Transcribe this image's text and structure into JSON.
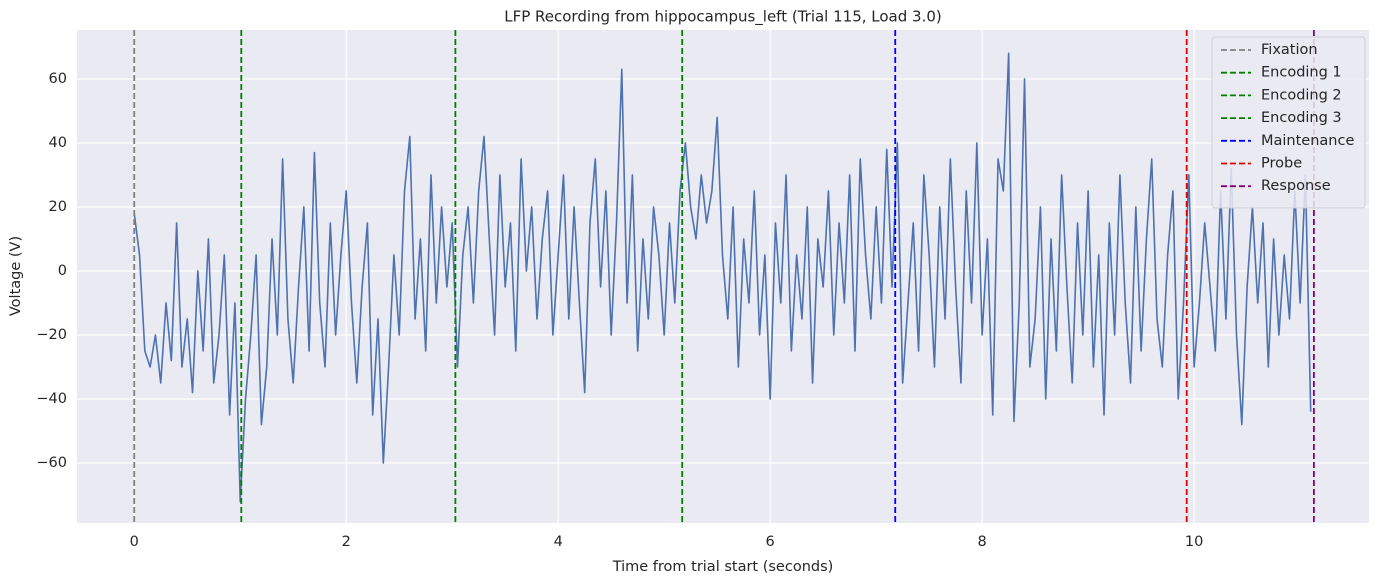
{
  "chart_data": {
    "type": "line",
    "title": "LFP Recording from hippocampus_left (Trial 115, Load 3.0)",
    "xlabel": "Time from trial start (seconds)",
    "ylabel": "Voltage (V)",
    "xlim": [
      -0.54,
      11.65
    ],
    "ylim": [
      -78.75,
      75.3
    ],
    "xticks": [
      0,
      2,
      4,
      6,
      8,
      10
    ],
    "yticks": [
      {
        "value": -60,
        "label": "−60"
      },
      {
        "value": -40,
        "label": "−40"
      },
      {
        "value": -20,
        "label": "−20"
      },
      0,
      20,
      40,
      60
    ],
    "grid": true,
    "legend": "upper right",
    "color": "#4c72b0",
    "x": [
      0,
      0.05,
      0.1,
      0.15,
      0.2,
      0.25,
      0.3,
      0.35,
      0.4,
      0.45,
      0.5,
      0.55,
      0.6,
      0.65,
      0.7,
      0.75,
      0.8,
      0.85,
      0.9,
      0.95,
      1,
      1.05,
      1.1,
      1.15,
      1.2,
      1.25,
      1.3,
      1.35,
      1.4,
      1.45,
      1.5,
      1.55,
      1.6,
      1.65,
      1.7,
      1.75,
      1.8,
      1.85,
      1.9,
      1.95,
      2,
      2.05,
      2.1,
      2.15,
      2.2,
      2.25,
      2.3,
      2.35,
      2.4,
      2.45,
      2.5,
      2.55,
      2.6,
      2.65,
      2.7,
      2.75,
      2.8,
      2.85,
      2.9,
      2.95,
      3,
      3.05,
      3.1,
      3.15,
      3.2,
      3.25,
      3.3,
      3.35,
      3.4,
      3.45,
      3.5,
      3.55,
      3.6,
      3.65,
      3.7,
      3.75,
      3.8,
      3.85,
      3.9,
      3.95,
      4,
      4.05,
      4.1,
      4.15,
      4.2,
      4.25,
      4.3,
      4.35,
      4.4,
      4.45,
      4.5,
      4.55,
      4.6,
      4.65,
      4.7,
      4.75,
      4.8,
      4.85,
      4.9,
      4.95,
      5,
      5.05,
      5.1,
      5.15,
      5.2,
      5.25,
      5.3,
      5.35,
      5.4,
      5.45,
      5.5,
      5.55,
      5.6,
      5.65,
      5.7,
      5.75,
      5.8,
      5.85,
      5.9,
      5.95,
      6,
      6.05,
      6.1,
      6.15,
      6.2,
      6.25,
      6.3,
      6.35,
      6.4,
      6.45,
      6.5,
      6.55,
      6.6,
      6.65,
      6.7,
      6.75,
      6.8,
      6.85,
      6.9,
      6.95,
      7,
      7.05,
      7.1,
      7.15,
      7.2,
      7.25,
      7.3,
      7.35,
      7.4,
      7.45,
      7.5,
      7.55,
      7.6,
      7.65,
      7.7,
      7.75,
      7.8,
      7.85,
      7.9,
      7.95,
      8,
      8.05,
      8.1,
      8.15,
      8.2,
      8.25,
      8.3,
      8.35,
      8.4,
      8.45,
      8.5,
      8.55,
      8.6,
      8.65,
      8.7,
      8.75,
      8.8,
      8.85,
      8.9,
      8.95,
      9,
      9.05,
      9.1,
      9.15,
      9.2,
      9.25,
      9.3,
      9.35,
      9.4,
      9.45,
      9.5,
      9.55,
      9.6,
      9.65,
      9.7,
      9.75,
      9.8,
      9.85,
      9.9,
      9.95,
      10,
      10.05,
      10.1,
      10.15,
      10.2,
      10.25,
      10.3,
      10.35,
      10.4,
      10.45,
      10.5,
      10.55,
      10.6,
      10.65,
      10.7,
      10.75,
      10.8,
      10.85,
      10.9,
      10.95,
      11,
      11.05,
      11.1
    ],
    "values": [
      18,
      5,
      -25,
      -30,
      -20,
      -35,
      -10,
      -28,
      15,
      -30,
      -15,
      -38,
      0,
      -25,
      10,
      -35,
      -20,
      5,
      -45,
      -10,
      -72,
      -40,
      -20,
      5,
      -48,
      -30,
      10,
      -20,
      35,
      -15,
      -35,
      -5,
      20,
      -25,
      37,
      -10,
      -30,
      15,
      -20,
      5,
      25,
      -10,
      -35,
      -5,
      15,
      -45,
      -15,
      -60,
      -30,
      5,
      -20,
      25,
      42,
      -15,
      10,
      -25,
      30,
      -10,
      20,
      -5,
      15,
      -30,
      5,
      20,
      -10,
      25,
      42,
      10,
      -20,
      30,
      -5,
      15,
      -25,
      35,
      0,
      20,
      -15,
      10,
      25,
      -20,
      5,
      30,
      -15,
      20,
      -10,
      -38,
      15,
      35,
      -5,
      25,
      -20,
      15,
      63,
      -10,
      30,
      -25,
      10,
      -15,
      20,
      5,
      -20,
      15,
      -10,
      25,
      40,
      20,
      10,
      30,
      15,
      25,
      48,
      5,
      -15,
      20,
      -30,
      10,
      -10,
      25,
      -20,
      5,
      -40,
      15,
      -10,
      30,
      -25,
      5,
      -15,
      20,
      -35,
      10,
      -5,
      25,
      -20,
      15,
      -10,
      30,
      -25,
      35,
      5,
      -15,
      20,
      -10,
      38,
      -5,
      40,
      -35,
      -10,
      15,
      -25,
      30,
      5,
      -30,
      20,
      -15,
      35,
      -5,
      -35,
      25,
      -10,
      40,
      -20,
      10,
      -45,
      35,
      25,
      68,
      -47,
      -10,
      60,
      -30,
      -15,
      20,
      -40,
      10,
      -25,
      30,
      -5,
      -35,
      15,
      -20,
      25,
      -30,
      5,
      -45,
      15,
      -20,
      30,
      -10,
      -35,
      20,
      -25,
      10,
      35,
      -15,
      -30,
      5,
      25,
      -40,
      -10,
      30,
      -30,
      -10,
      15,
      -5,
      -25,
      25,
      -15,
      32,
      -20,
      -48,
      -5,
      20,
      -10,
      15,
      -30,
      10,
      -20,
      5,
      -15,
      25,
      -10,
      30,
      -44
    ],
    "events": [
      {
        "name": "Fixation",
        "x": 0,
        "color": "#808080"
      },
      {
        "name": "Encoding 1",
        "x": 1.01,
        "color": "#008000"
      },
      {
        "name": "Encoding 2",
        "x": 3.03,
        "color": "#008000"
      },
      {
        "name": "Encoding 3",
        "x": 5.17,
        "color": "#008000"
      },
      {
        "name": "Maintenance",
        "x": 7.18,
        "color": "#0000ff"
      },
      {
        "name": "Probe",
        "x": 9.93,
        "color": "#e00000"
      },
      {
        "name": "Response",
        "x": 11.13,
        "color": "#800080"
      }
    ]
  }
}
